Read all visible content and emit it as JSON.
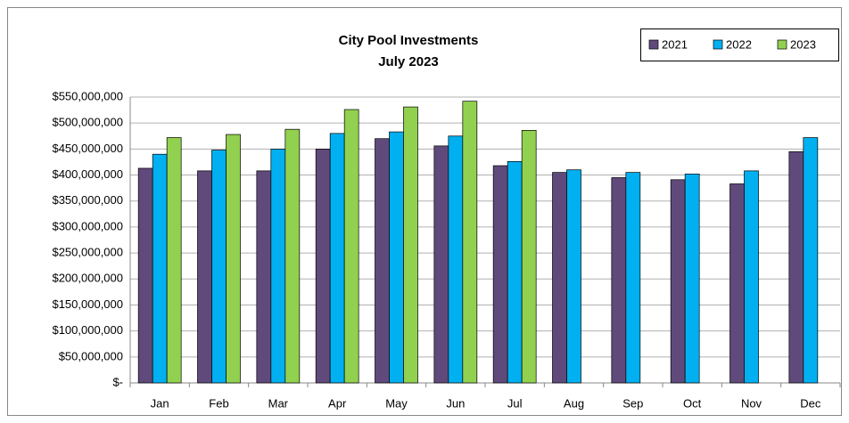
{
  "chart_data": {
    "type": "bar",
    "title": "City Pool Investments",
    "subtitle": "July 2023",
    "categories": [
      "Jan",
      "Feb",
      "Mar",
      "Apr",
      "May",
      "Jun",
      "Jul",
      "Aug",
      "Sep",
      "Oct",
      "Nov",
      "Dec"
    ],
    "series": [
      {
        "name": "2021",
        "color": "#604a7b",
        "values": [
          413000000,
          408000000,
          408000000,
          450000000,
          470000000,
          456000000,
          418000000,
          405000000,
          395000000,
          391000000,
          383000000,
          445000000
        ]
      },
      {
        "name": "2022",
        "color": "#00b0f0",
        "values": [
          440000000,
          448000000,
          450000000,
          480000000,
          483000000,
          475000000,
          426000000,
          410000000,
          405000000,
          402000000,
          408000000,
          472000000
        ]
      },
      {
        "name": "2023",
        "color": "#92d050",
        "values": [
          472000000,
          478000000,
          488000000,
          526000000,
          531000000,
          542000000,
          486000000,
          null,
          null,
          null,
          null,
          null
        ]
      }
    ],
    "ylim": [
      0,
      550000000
    ],
    "yticks": [
      {
        "value": 0,
        "label": "$-"
      },
      {
        "value": 50000000,
        "label": "$50,000,000"
      },
      {
        "value": 100000000,
        "label": "$100,000,000"
      },
      {
        "value": 150000000,
        "label": "$150,000,000"
      },
      {
        "value": 200000000,
        "label": "$200,000,000"
      },
      {
        "value": 250000000,
        "label": "$250,000,000"
      },
      {
        "value": 300000000,
        "label": "$300,000,000"
      },
      {
        "value": 350000000,
        "label": "$350,000,000"
      },
      {
        "value": 400000000,
        "label": "$400,000,000"
      },
      {
        "value": 450000000,
        "label": "$450,000,000"
      },
      {
        "value": 500000000,
        "label": "$500,000,000"
      },
      {
        "value": 550000000,
        "label": "$550,000,000"
      }
    ],
    "grid": true,
    "legend": "top-right"
  }
}
